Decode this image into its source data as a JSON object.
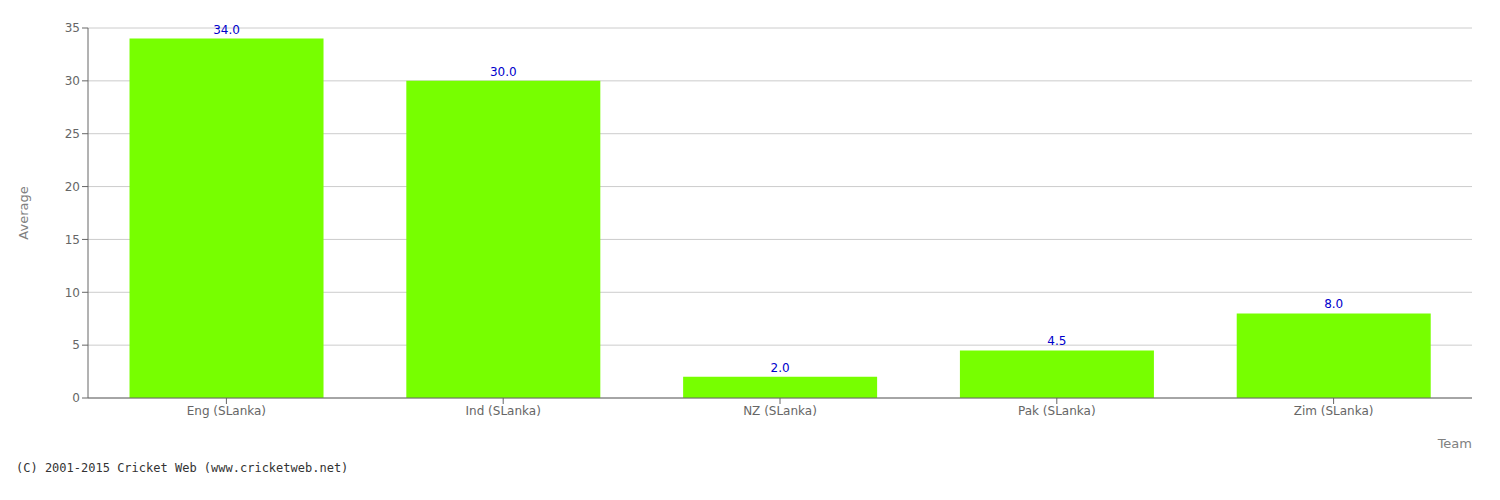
{
  "chart_data": {
    "type": "bar",
    "categories": [
      "Eng (SLanka)",
      "Ind (SLanka)",
      "NZ (SLanka)",
      "Pak (SLanka)",
      "Zim (SLanka)"
    ],
    "values": [
      34.0,
      30.0,
      2.0,
      4.5,
      8.0
    ],
    "value_labels": [
      "34.0",
      "30.0",
      "2.0",
      "4.5",
      "8.0"
    ],
    "data_labels": true,
    "color": "#77ff00",
    "xlabel": "Team",
    "ylabel": "Average",
    "ylim": [
      0,
      35
    ],
    "yticks": [
      0,
      5,
      10,
      15,
      20,
      25,
      30,
      35
    ],
    "grid": true,
    "annotations": [
      "(C) 2001-2015 Cricket Web (www.cricketweb.net)"
    ]
  }
}
